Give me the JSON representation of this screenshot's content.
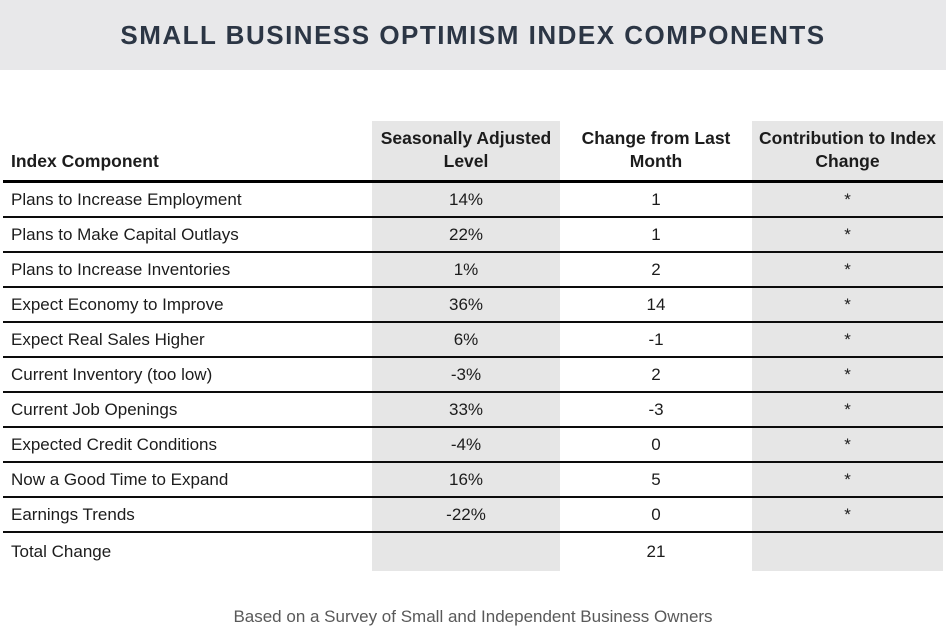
{
  "title": "SMALL BUSINESS OPTIMISM INDEX COMPONENTS",
  "footer": "Based on a Survey of Small and Independent Business Owners",
  "colors": {
    "title_band_bg": "#e8e8ea",
    "column_shade_bg": "#e6e6e6",
    "title_text": "#2c3645",
    "body_text": "#1c1c1c",
    "footer_text": "#595959",
    "border": "#000000"
  },
  "table": {
    "headers": [
      "Index Component",
      "Seasonally Adjusted Level",
      "Change from Last Month",
      "Contribution to Index Change"
    ],
    "rows": [
      {
        "component": "Plans to Increase Employment",
        "level": "14%",
        "change": "1",
        "contribution": "*"
      },
      {
        "component": "Plans to Make Capital Outlays",
        "level": "22%",
        "change": "1",
        "contribution": "*"
      },
      {
        "component": "Plans to Increase Inventories",
        "level": "1%",
        "change": "2",
        "contribution": "*"
      },
      {
        "component": "Expect Economy to Improve",
        "level": "36%",
        "change": "14",
        "contribution": "*"
      },
      {
        "component": "Expect Real Sales Higher",
        "level": "6%",
        "change": "-1",
        "contribution": "*"
      },
      {
        "component": "Current Inventory (too low)",
        "level": "-3%",
        "change": "2",
        "contribution": "*"
      },
      {
        "component": "Current Job Openings",
        "level": "33%",
        "change": "-3",
        "contribution": "*"
      },
      {
        "component": "Expected Credit Conditions",
        "level": "-4%",
        "change": "0",
        "contribution": "*"
      },
      {
        "component": "Now a Good Time to Expand",
        "level": "16%",
        "change": "5",
        "contribution": "*"
      },
      {
        "component": "Earnings Trends",
        "level": "-22%",
        "change": "0",
        "contribution": "*"
      },
      {
        "component": "Total Change",
        "level": "",
        "change": "21",
        "contribution": ""
      }
    ]
  },
  "chart_data": {
    "type": "table",
    "title": "Small Business Optimism Index Components",
    "columns": [
      "Index Component",
      "Seasonally Adjusted Level",
      "Change from Last Month",
      "Contribution to Index Change"
    ],
    "rows": [
      [
        "Plans to Increase Employment",
        "14%",
        1,
        "*"
      ],
      [
        "Plans to Make Capital Outlays",
        "22%",
        1,
        "*"
      ],
      [
        "Plans to Increase Inventories",
        "1%",
        2,
        "*"
      ],
      [
        "Expect Economy to Improve",
        "36%",
        14,
        "*"
      ],
      [
        "Expect Real Sales Higher",
        "6%",
        -1,
        "*"
      ],
      [
        "Current Inventory (too low)",
        "-3%",
        2,
        "*"
      ],
      [
        "Current Job Openings",
        "33%",
        -3,
        "*"
      ],
      [
        "Expected Credit Conditions",
        "-4%",
        0,
        "*"
      ],
      [
        "Now a Good Time to Expand",
        "16%",
        5,
        "*"
      ],
      [
        "Earnings Trends",
        "-22%",
        0,
        "*"
      ],
      [
        "Total Change",
        "",
        21,
        ""
      ]
    ],
    "note": "Based on a Survey of Small and Independent Business Owners"
  }
}
